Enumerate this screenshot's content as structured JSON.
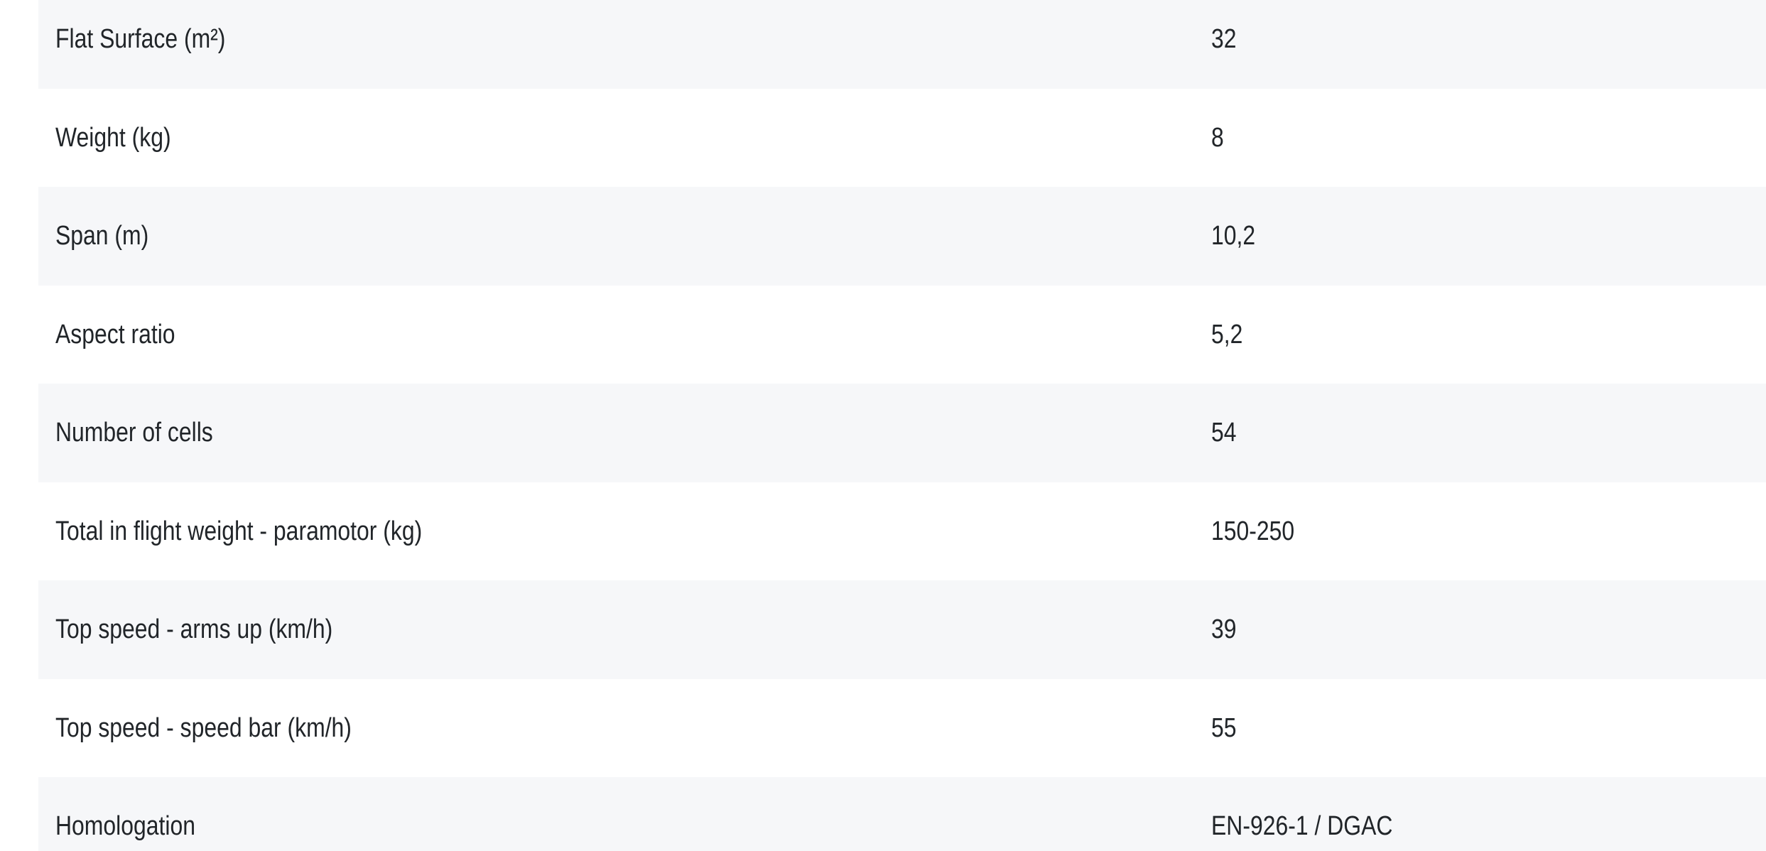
{
  "colors": {
    "row_alt": "#f6f7f9",
    "row": "#ffffff",
    "text": "#212529"
  },
  "spec_table": {
    "rows": [
      {
        "label": "Flat Surface (m²)",
        "value": "32"
      },
      {
        "label": "Weight (kg)",
        "value": "8"
      },
      {
        "label": "Span (m)",
        "value": "10,2"
      },
      {
        "label": "Aspect ratio",
        "value": "5,2"
      },
      {
        "label": "Number of cells",
        "value": "54"
      },
      {
        "label": "Total in flight weight - paramotor (kg)",
        "value": "150-250"
      },
      {
        "label": "Top speed - arms up (km/h)",
        "value": "39"
      },
      {
        "label": "Top speed - speed bar (km/h)",
        "value": "55"
      },
      {
        "label": "Homologation",
        "value": "EN-926-1 / DGAC"
      }
    ]
  }
}
